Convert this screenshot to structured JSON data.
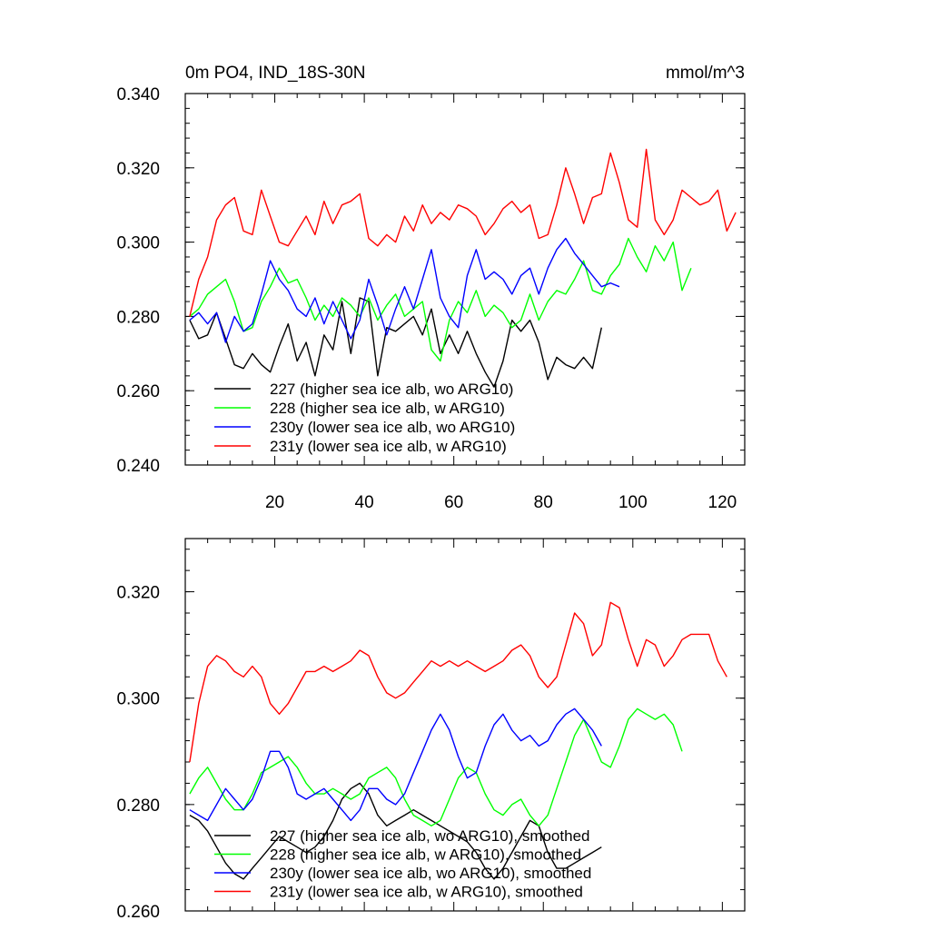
{
  "chart_data": [
    {
      "type": "line",
      "title": "0m PO4, IND_18S-30N",
      "units": "mmol/m^3",
      "xlabel": "",
      "ylabel": "",
      "xlim": [
        0,
        125
      ],
      "ylim": [
        0.24,
        0.34
      ],
      "xticks": [
        20,
        40,
        60,
        80,
        100,
        120
      ],
      "xtick_labels": [
        "20",
        "40",
        "60",
        "80",
        "100",
        "120"
      ],
      "yticks": [
        0.24,
        0.26,
        0.28,
        0.3,
        0.32,
        0.34
      ],
      "ytick_labels": [
        "0.240",
        "0.260",
        "0.280",
        "0.300",
        "0.320",
        "0.340"
      ],
      "grid": false,
      "legend_placement": "bottom-left",
      "series": [
        {
          "name": "227 (higher sea ice alb, wo ARG10)",
          "color": "#000000",
          "x": [
            1,
            3,
            5,
            7,
            9,
            11,
            13,
            15,
            17,
            19,
            21,
            23,
            25,
            27,
            29,
            31,
            33,
            35,
            37,
            39,
            41,
            43,
            45,
            47,
            49,
            51,
            53,
            55,
            57,
            59,
            61,
            63,
            65,
            67,
            69,
            71,
            73,
            75,
            77,
            79,
            81,
            83,
            85,
            87,
            89,
            91,
            93
          ],
          "y": [
            0.279,
            0.274,
            0.275,
            0.281,
            0.274,
            0.267,
            0.266,
            0.27,
            0.267,
            0.265,
            0.272,
            0.278,
            0.268,
            0.273,
            0.264,
            0.275,
            0.271,
            0.284,
            0.27,
            0.285,
            0.284,
            0.264,
            0.277,
            0.276,
            0.278,
            0.28,
            0.275,
            0.282,
            0.27,
            0.275,
            0.27,
            0.276,
            0.27,
            0.265,
            0.261,
            0.268,
            0.279,
            0.276,
            0.279,
            0.273,
            0.263,
            0.269,
            0.267,
            0.266,
            0.269,
            0.266,
            0.277
          ]
        },
        {
          "name": "228 (higher sea ice alb, w ARG10)",
          "color": "#00ff00",
          "x": [
            1,
            3,
            5,
            7,
            9,
            11,
            13,
            15,
            17,
            19,
            21,
            23,
            25,
            27,
            29,
            31,
            33,
            35,
            37,
            39,
            41,
            43,
            45,
            47,
            49,
            51,
            53,
            55,
            57,
            59,
            61,
            63,
            65,
            67,
            69,
            71,
            73,
            75,
            77,
            79,
            81,
            83,
            85,
            87,
            89,
            91,
            93,
            95,
            97,
            99,
            101,
            103,
            105,
            107,
            109,
            111,
            113
          ],
          "y": [
            0.28,
            0.282,
            0.286,
            0.288,
            0.29,
            0.284,
            0.276,
            0.277,
            0.284,
            0.288,
            0.293,
            0.289,
            0.29,
            0.285,
            0.279,
            0.283,
            0.28,
            0.285,
            0.283,
            0.28,
            0.285,
            0.279,
            0.283,
            0.286,
            0.28,
            0.282,
            0.284,
            0.271,
            0.268,
            0.279,
            0.284,
            0.281,
            0.287,
            0.28,
            0.283,
            0.281,
            0.277,
            0.279,
            0.286,
            0.279,
            0.284,
            0.287,
            0.286,
            0.29,
            0.295,
            0.287,
            0.286,
            0.291,
            0.294,
            0.301,
            0.296,
            0.292,
            0.299,
            0.295,
            0.3,
            0.287,
            0.293
          ]
        },
        {
          "name": "230y (lower sea ice alb, wo ARG10)",
          "color": "#0000ff",
          "x": [
            1,
            3,
            5,
            7,
            9,
            11,
            13,
            15,
            17,
            19,
            21,
            23,
            25,
            27,
            29,
            31,
            33,
            35,
            37,
            39,
            41,
            43,
            45,
            47,
            49,
            51,
            53,
            55,
            57,
            59,
            61,
            63,
            65,
            67,
            69,
            71,
            73,
            75,
            77,
            79,
            81,
            83,
            85,
            87,
            89,
            91,
            93,
            95,
            97
          ],
          "y": [
            0.279,
            0.281,
            0.278,
            0.281,
            0.273,
            0.28,
            0.276,
            0.278,
            0.286,
            0.295,
            0.29,
            0.287,
            0.282,
            0.28,
            0.285,
            0.278,
            0.284,
            0.279,
            0.274,
            0.279,
            0.29,
            0.283,
            0.275,
            0.282,
            0.288,
            0.282,
            0.29,
            0.298,
            0.285,
            0.28,
            0.277,
            0.291,
            0.298,
            0.29,
            0.292,
            0.29,
            0.286,
            0.291,
            0.293,
            0.286,
            0.293,
            0.298,
            0.301,
            0.297,
            0.294,
            0.291,
            0.288,
            0.289,
            0.288
          ]
        },
        {
          "name": "231y (lower sea ice alb, w ARG10)",
          "color": "#ff0000",
          "x": [
            1,
            3,
            5,
            7,
            9,
            11,
            13,
            15,
            17,
            19,
            21,
            23,
            25,
            27,
            29,
            31,
            33,
            35,
            37,
            39,
            41,
            43,
            45,
            47,
            49,
            51,
            53,
            55,
            57,
            59,
            61,
            63,
            65,
            67,
            69,
            71,
            73,
            75,
            77,
            79,
            81,
            83,
            85,
            87,
            89,
            91,
            93,
            95,
            97,
            99,
            101,
            103,
            105,
            107,
            109,
            111,
            113,
            115,
            117,
            119,
            121,
            123
          ],
          "y": [
            0.28,
            0.29,
            0.296,
            0.306,
            0.31,
            0.312,
            0.303,
            0.302,
            0.314,
            0.307,
            0.3,
            0.299,
            0.303,
            0.307,
            0.302,
            0.311,
            0.305,
            0.31,
            0.311,
            0.313,
            0.301,
            0.299,
            0.302,
            0.3,
            0.307,
            0.303,
            0.31,
            0.305,
            0.308,
            0.306,
            0.31,
            0.309,
            0.307,
            0.302,
            0.305,
            0.309,
            0.311,
            0.308,
            0.31,
            0.301,
            0.302,
            0.31,
            0.32,
            0.313,
            0.305,
            0.312,
            0.313,
            0.324,
            0.316,
            0.306,
            0.304,
            0.325,
            0.306,
            0.302,
            0.306,
            0.314,
            0.312,
            0.31,
            0.311,
            0.314,
            0.303,
            0.308
          ]
        }
      ]
    },
    {
      "type": "line",
      "title": "",
      "xlabel": "",
      "ylabel": "",
      "xlim": [
        0,
        125
      ],
      "ylim": [
        0.26,
        0.33
      ],
      "xticks": [
        20,
        40,
        60,
        80,
        100,
        120
      ],
      "xtick_labels": [],
      "yticks": [
        0.26,
        0.28,
        0.3,
        0.32
      ],
      "ytick_labels": [
        "0.260",
        "0.280",
        "0.300",
        "0.320"
      ],
      "grid": false,
      "legend_placement": "bottom-left",
      "series": [
        {
          "name": "227 (higher sea ice alb, wo ARG10), smoothed",
          "color": "#000000",
          "x": [
            1,
            3,
            5,
            7,
            9,
            11,
            13,
            15,
            17,
            19,
            21,
            23,
            25,
            27,
            29,
            31,
            33,
            35,
            37,
            39,
            41,
            43,
            45,
            47,
            49,
            51,
            53,
            55,
            57,
            59,
            61,
            63,
            65,
            67,
            69,
            71,
            73,
            75,
            77,
            79,
            81,
            83,
            85,
            87,
            89,
            91,
            93
          ],
          "y": [
            0.278,
            0.277,
            0.275,
            0.272,
            0.269,
            0.267,
            0.266,
            0.268,
            0.27,
            0.272,
            0.274,
            0.273,
            0.272,
            0.271,
            0.272,
            0.274,
            0.277,
            0.281,
            0.283,
            0.284,
            0.282,
            0.278,
            0.276,
            0.277,
            0.278,
            0.279,
            0.278,
            0.277,
            0.276,
            0.275,
            0.274,
            0.273,
            0.271,
            0.268,
            0.266,
            0.268,
            0.271,
            0.274,
            0.277,
            0.276,
            0.271,
            0.268,
            0.268,
            0.269,
            0.27,
            0.271,
            0.272
          ]
        },
        {
          "name": "228 (higher sea ice alb, w ARG10), smoothed",
          "color": "#00ff00",
          "x": [
            1,
            3,
            5,
            7,
            9,
            11,
            13,
            15,
            17,
            19,
            21,
            23,
            25,
            27,
            29,
            31,
            33,
            35,
            37,
            39,
            41,
            43,
            45,
            47,
            49,
            51,
            53,
            55,
            57,
            59,
            61,
            63,
            65,
            67,
            69,
            71,
            73,
            75,
            77,
            79,
            81,
            83,
            85,
            87,
            89,
            91,
            93,
            95,
            97,
            99,
            101,
            103,
            105,
            107,
            109,
            111
          ],
          "y": [
            0.282,
            0.285,
            0.287,
            0.284,
            0.281,
            0.279,
            0.279,
            0.282,
            0.286,
            0.287,
            0.288,
            0.289,
            0.287,
            0.284,
            0.282,
            0.282,
            0.283,
            0.282,
            0.281,
            0.282,
            0.285,
            0.286,
            0.287,
            0.285,
            0.281,
            0.278,
            0.277,
            0.276,
            0.277,
            0.281,
            0.285,
            0.287,
            0.286,
            0.282,
            0.279,
            0.278,
            0.28,
            0.281,
            0.278,
            0.276,
            0.278,
            0.283,
            0.288,
            0.293,
            0.296,
            0.292,
            0.288,
            0.287,
            0.291,
            0.296,
            0.298,
            0.297,
            0.296,
            0.297,
            0.295,
            0.29
          ]
        },
        {
          "name": "230y (lower sea ice alb, wo ARG10), smoothed",
          "color": "#0000ff",
          "x": [
            1,
            3,
            5,
            7,
            9,
            11,
            13,
            15,
            17,
            19,
            21,
            23,
            25,
            27,
            29,
            31,
            33,
            35,
            37,
            39,
            41,
            43,
            45,
            47,
            49,
            51,
            53,
            55,
            57,
            59,
            61,
            63,
            65,
            67,
            69,
            71,
            73,
            75,
            77,
            79,
            81,
            83,
            85,
            87,
            89,
            91,
            93
          ],
          "y": [
            0.279,
            0.278,
            0.277,
            0.28,
            0.283,
            0.281,
            0.279,
            0.281,
            0.285,
            0.29,
            0.29,
            0.287,
            0.282,
            0.281,
            0.282,
            0.283,
            0.281,
            0.279,
            0.277,
            0.279,
            0.283,
            0.283,
            0.281,
            0.28,
            0.282,
            0.286,
            0.29,
            0.294,
            0.297,
            0.294,
            0.289,
            0.285,
            0.286,
            0.291,
            0.295,
            0.297,
            0.294,
            0.292,
            0.293,
            0.291,
            0.292,
            0.295,
            0.297,
            0.298,
            0.296,
            0.294,
            0.291
          ]
        },
        {
          "name": "231y (lower sea ice alb, w ARG10), smoothed",
          "color": "#ff0000",
          "x": [
            1,
            3,
            5,
            7,
            9,
            11,
            13,
            15,
            17,
            19,
            21,
            23,
            25,
            27,
            29,
            31,
            33,
            35,
            37,
            39,
            41,
            43,
            45,
            47,
            49,
            51,
            53,
            55,
            57,
            59,
            61,
            63,
            65,
            67,
            69,
            71,
            73,
            75,
            77,
            79,
            81,
            83,
            85,
            87,
            89,
            91,
            93,
            95,
            97,
            99,
            101,
            103,
            105,
            107,
            109,
            111,
            113,
            115,
            117,
            119,
            121
          ],
          "y": [
            0.288,
            0.299,
            0.306,
            0.308,
            0.307,
            0.305,
            0.304,
            0.306,
            0.304,
            0.299,
            0.297,
            0.299,
            0.302,
            0.305,
            0.305,
            0.306,
            0.305,
            0.306,
            0.307,
            0.309,
            0.308,
            0.304,
            0.301,
            0.3,
            0.301,
            0.303,
            0.305,
            0.307,
            0.306,
            0.307,
            0.306,
            0.307,
            0.306,
            0.305,
            0.306,
            0.307,
            0.309,
            0.31,
            0.308,
            0.304,
            0.302,
            0.304,
            0.31,
            0.316,
            0.314,
            0.308,
            0.31,
            0.318,
            0.317,
            0.311,
            0.306,
            0.311,
            0.31,
            0.306,
            0.308,
            0.311,
            0.312,
            0.312,
            0.312,
            0.307,
            0.304
          ]
        }
      ]
    }
  ]
}
